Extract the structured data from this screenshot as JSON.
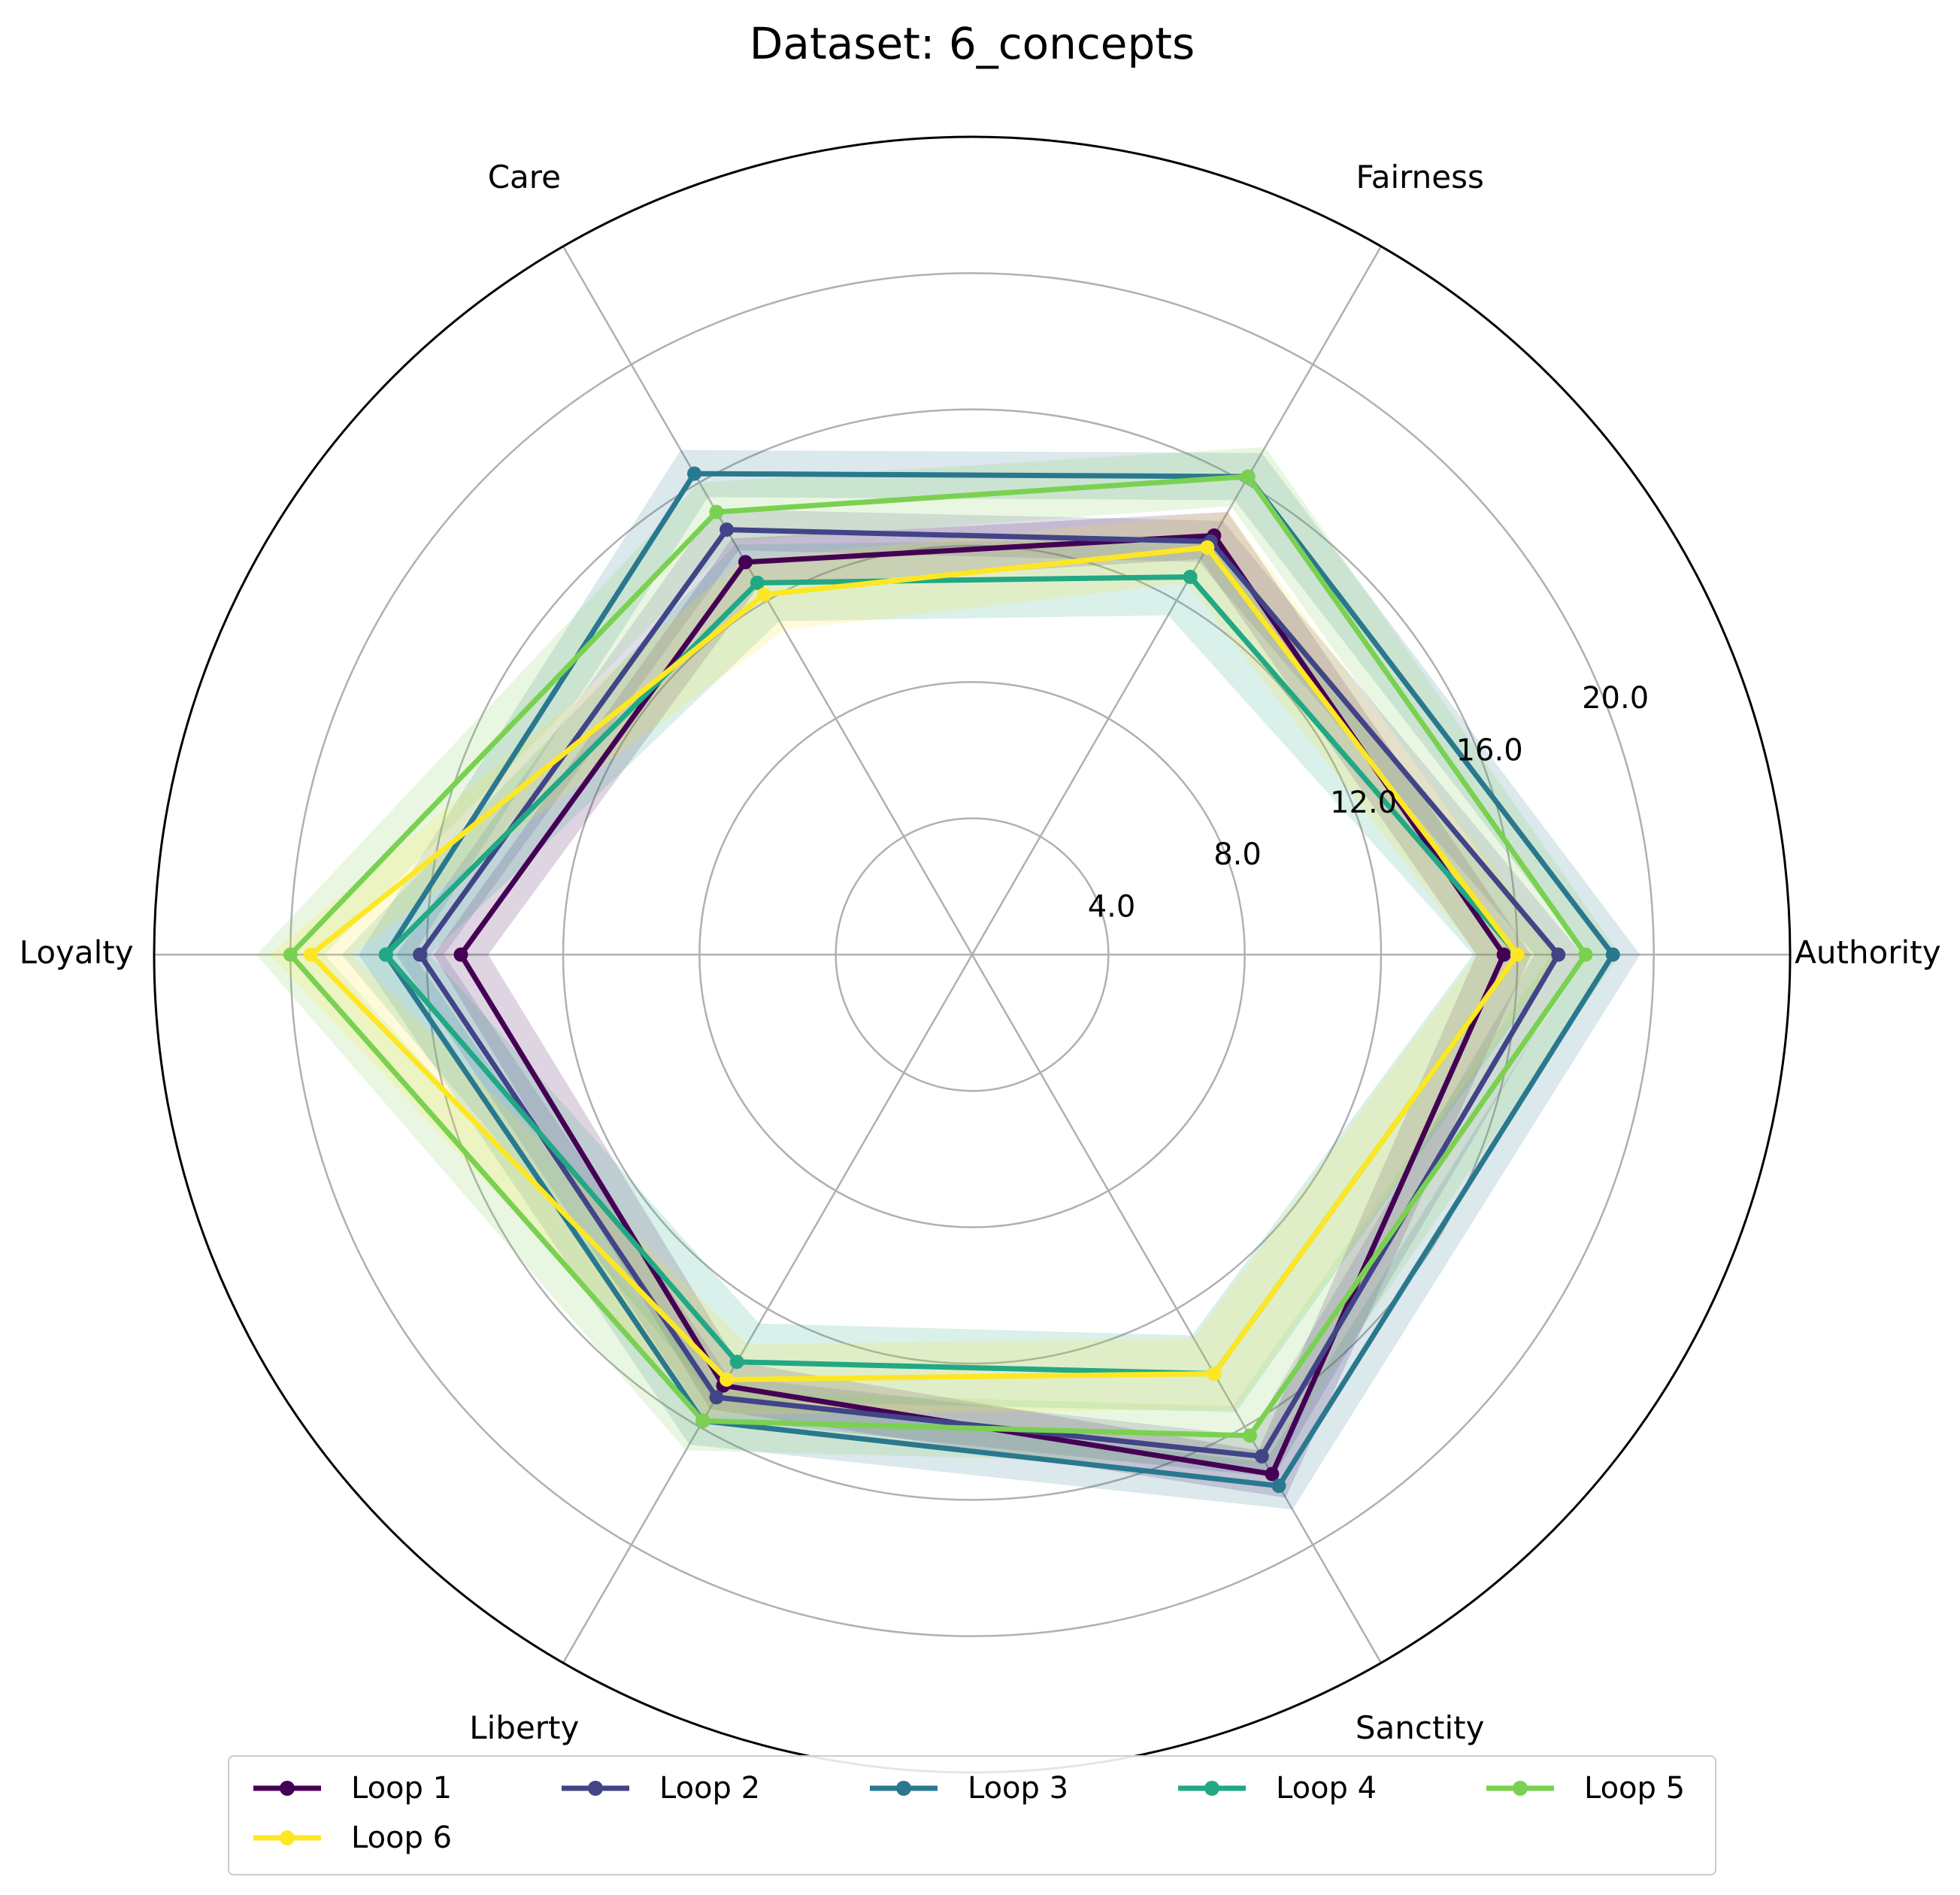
{
  "chart_data": {
    "type": "radar",
    "title": "Dataset: 6_concepts",
    "axes": [
      "Authority",
      "Fairness",
      "Care",
      "Loyalty",
      "Liberty",
      "Sanctity"
    ],
    "rmax": 24,
    "rticks": [
      4,
      8,
      12,
      16,
      20
    ],
    "rtick_labels": [
      "4.0",
      "8.0",
      "12.0",
      "16.0",
      "20.0"
    ],
    "grid": true,
    "legend_position": "bottom",
    "series": [
      {
        "name": "Loop 1",
        "color": "#440154",
        "values": [
          15.6,
          14.2,
          13.3,
          15.0,
          14.6,
          17.6
        ],
        "band": 0.8
      },
      {
        "name": "Loop 2",
        "color": "#414487",
        "values": [
          17.2,
          14.0,
          14.4,
          16.2,
          15.0,
          17.0
        ],
        "band": 0.7
      },
      {
        "name": "Loop 3",
        "color": "#2a788e",
        "values": [
          18.8,
          16.2,
          16.3,
          17.2,
          15.8,
          18.0
        ],
        "band": 0.8
      },
      {
        "name": "Loop 4",
        "color": "#22a884",
        "values": [
          16.0,
          12.8,
          12.6,
          17.2,
          13.8,
          14.2
        ],
        "band": 1.3
      },
      {
        "name": "Loop 5",
        "color": "#7ad151",
        "values": [
          18.0,
          16.2,
          15.0,
          20.0,
          15.8,
          16.3
        ],
        "band": 1.0
      },
      {
        "name": "Loop 6",
        "color": "#fde725",
        "values": [
          16.0,
          13.8,
          12.2,
          19.4,
          14.4,
          14.2
        ],
        "band": 1.2
      }
    ]
  }
}
